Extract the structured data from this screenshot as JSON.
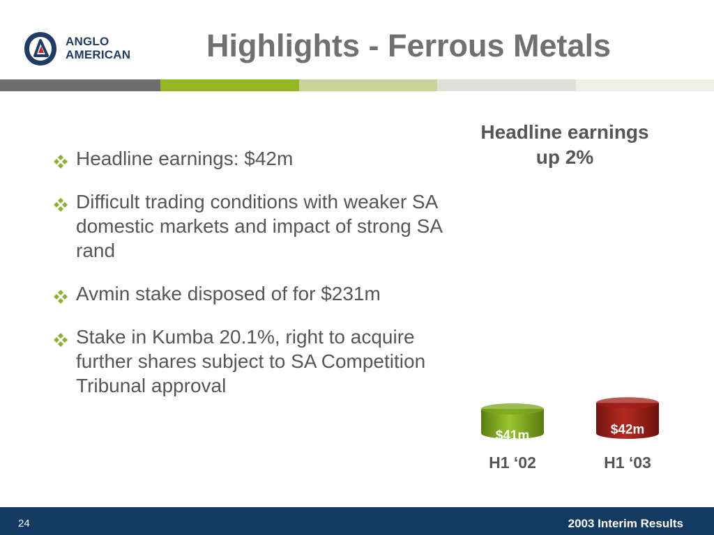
{
  "header": {
    "logo": {
      "line1": "ANGLO",
      "line2": "AMERICAN"
    },
    "title": "Highlights - Ferrous Metals"
  },
  "stripe_colors": [
    "#6d6e70",
    "#94b821",
    "#c9d397",
    "#dfe0d8",
    "#eef0e6"
  ],
  "bullets": [
    "Headline earnings: $42m",
    "Difficult trading conditions with weaker SA domestic markets and impact of strong SA rand",
    "Avmin stake disposed of for $231m",
    "Stake in Kumba 20.1%, right to acquire further shares subject to SA Competition Tribunal approval"
  ],
  "chart_data": {
    "type": "bar",
    "title_lines": [
      "Headline earnings",
      "up 2%"
    ],
    "categories": [
      "H1 ‘02",
      "H1 ‘03"
    ],
    "values": [
      41,
      42
    ],
    "data_labels": [
      "$41m",
      "$42m"
    ],
    "units": "$m",
    "colors": [
      "#7aa51c",
      "#a01f18"
    ],
    "grid": false
  },
  "footer": {
    "page_number": "24",
    "title": "2003 Interim Results"
  }
}
